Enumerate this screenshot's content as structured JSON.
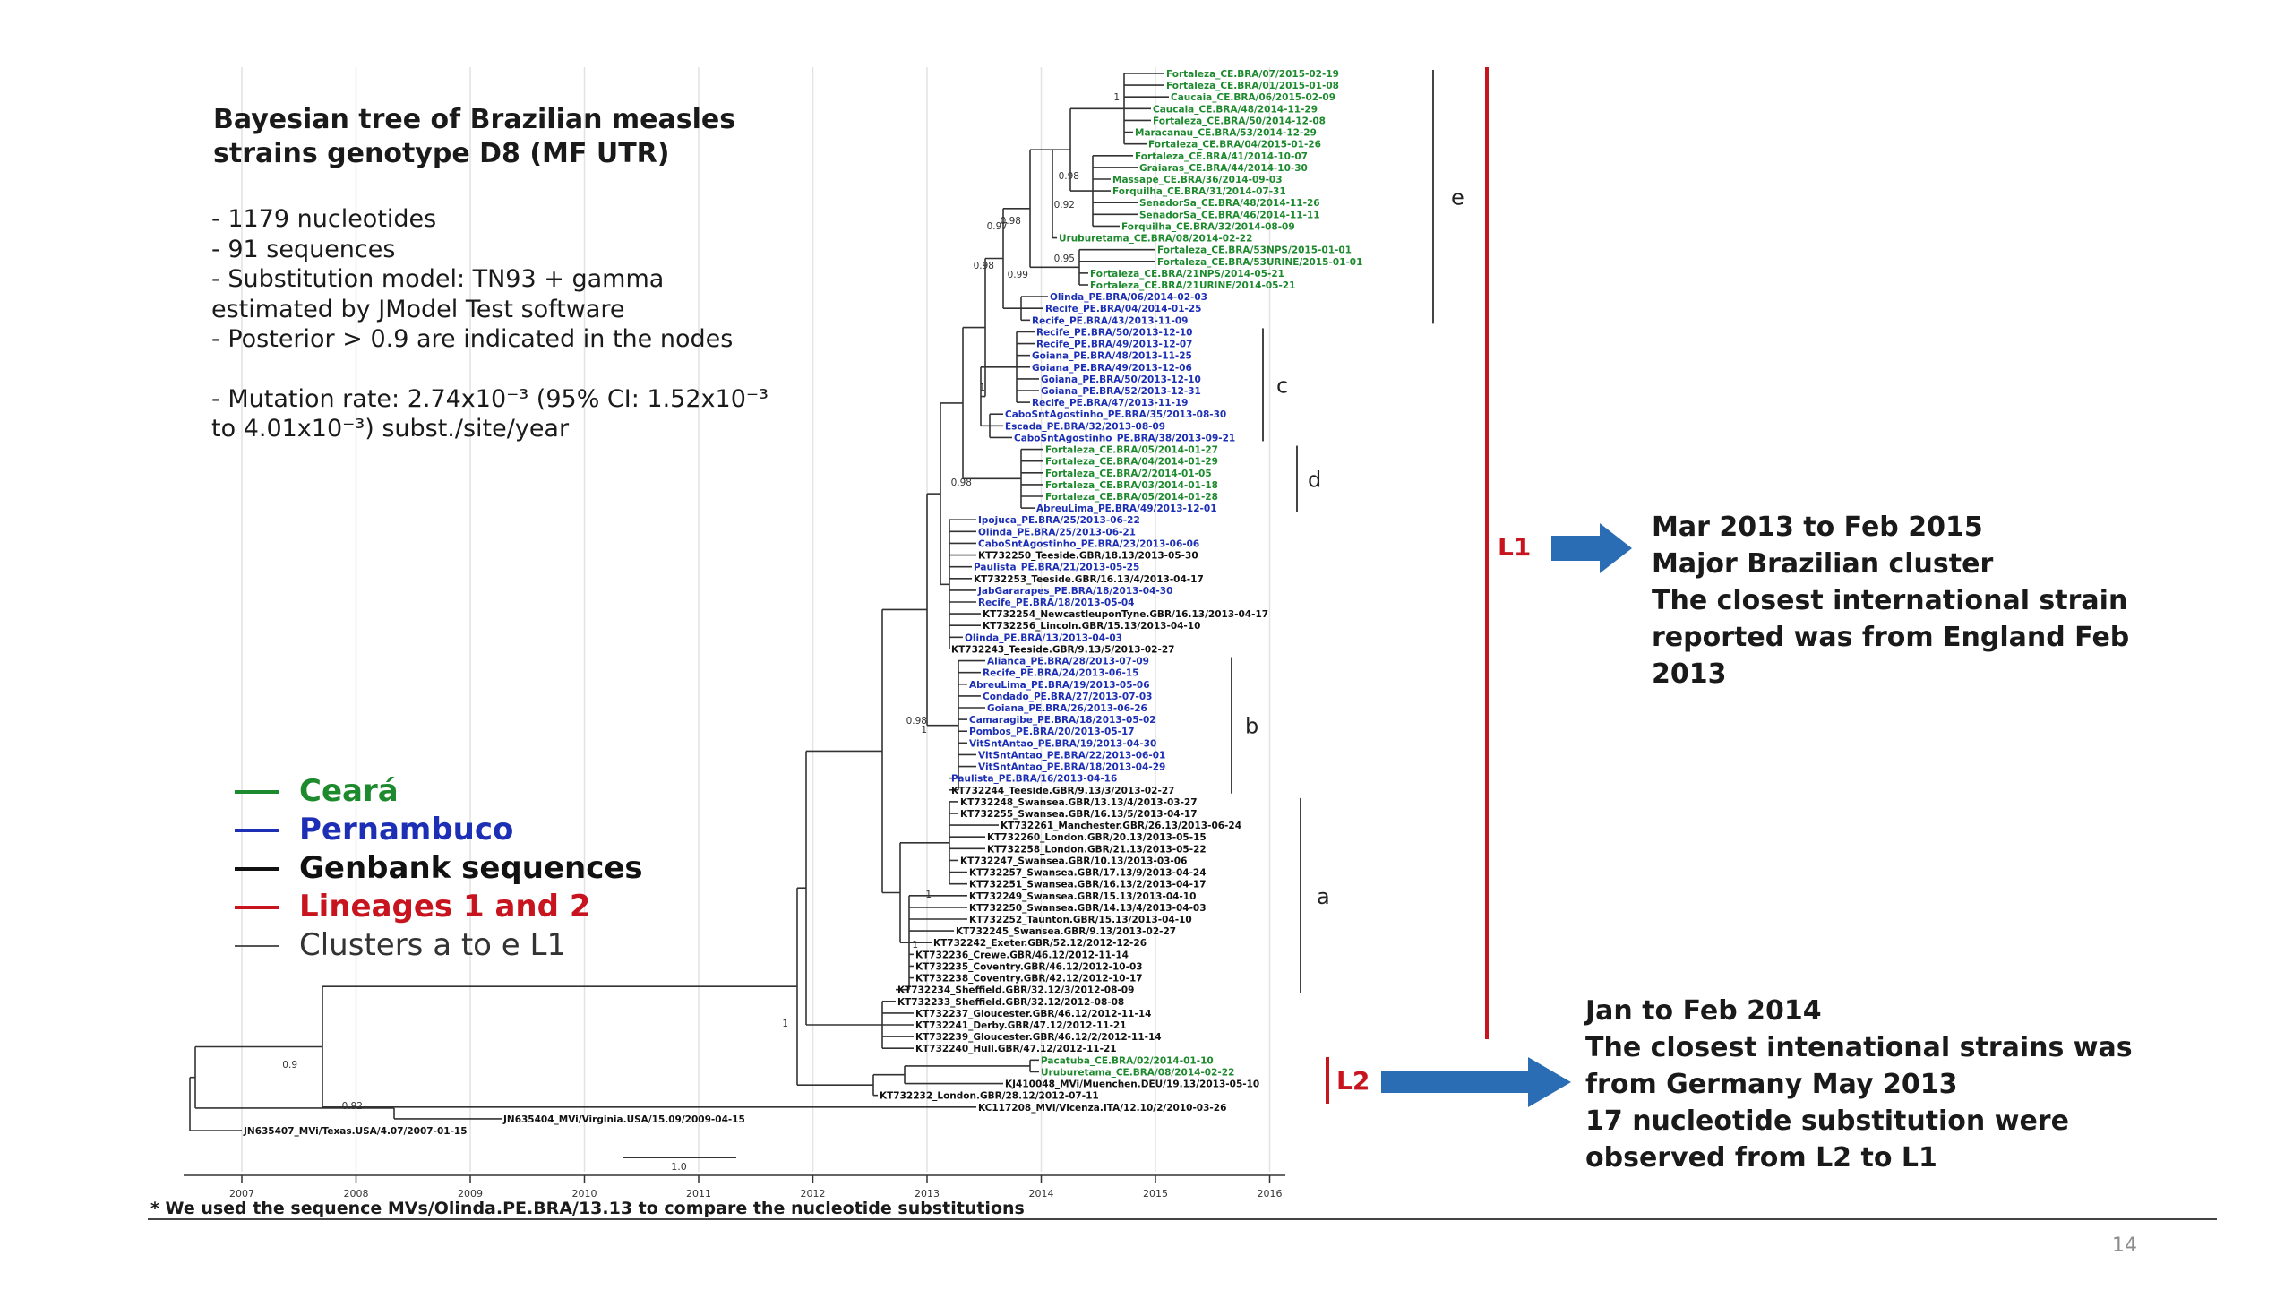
{
  "title_lines": [
    "Bayesian tree of Brazilian measles",
    "strains genotype D8 (MF UTR)"
  ],
  "notes": {
    "line1": "- 1179 nucleotides",
    "line2": "- 91 sequences",
    "line3": "- Substitution model: TN93 + gamma",
    "line4": "estimated by JModel Test software",
    "line5": "- Posterior > 0.9 are indicated in the nodes",
    "mutation_line1": "- Mutation rate: 2.74x10⁻³ (95% CI: 1.52x10⁻³",
    "mutation_line2": "to 4.01x10⁻³) subst./site/year"
  },
  "legend": [
    {
      "label": "Ceará",
      "color": "#1e8a2e"
    },
    {
      "label": "Pernambuco",
      "color": "#1c2fb5"
    },
    {
      "label": "Genbank sequences",
      "color": "#111111"
    },
    {
      "label": "Lineages 1 and 2",
      "color": "#c8141e"
    },
    {
      "label": "Clusters a to e L1",
      "color": "#555555"
    }
  ],
  "colors": {
    "ceara": "#1e8a2e",
    "pernambuco": "#1c2fb5",
    "genbank": "#111111",
    "lineage": "#c8141e",
    "arrow": "#2a6db4",
    "branch": "#333333",
    "cluster_bar": "#444444"
  },
  "clusters": [
    "e",
    "c",
    "d",
    "b",
    "a"
  ],
  "lineages": {
    "l1": "L1",
    "l2": "L2"
  },
  "l1_info": {
    "line1": "Mar 2013 to Feb 2015",
    "line2": "Major Brazilian cluster",
    "line3": "The closest international strain",
    "line4": "reported was from England Feb",
    "line5": "2013"
  },
  "l2_info": {
    "line1": "Jan to Feb 2014",
    "line2": "The closest intenational strains was",
    "line3": "from Germany May 2013",
    "line4": "17 nucleotide substitution were",
    "line5": "observed from L2 to L1"
  },
  "axis_years": [
    "2007",
    "2008",
    "2009",
    "2010",
    "2011",
    "2012",
    "2013",
    "2014",
    "2015",
    "2016"
  ],
  "scale_label": "1.0",
  "node_support": [
    "1",
    "0.98",
    "0.92",
    "0.95",
    "0.97",
    "0.98",
    "0.99",
    "0.98",
    "1",
    "0.98",
    "1",
    "0.98",
    "1",
    "1",
    "1",
    "0.9",
    "0.92"
  ],
  "tips": [
    {
      "label": "Fortaleza_CE.BRA/07/2015-02-19",
      "g": "ce"
    },
    {
      "label": "Fortaleza_CE.BRA/01/2015-01-08",
      "g": "ce"
    },
    {
      "label": "Caucaia_CE.BRA/06/2015-02-09",
      "g": "ce"
    },
    {
      "label": "Caucaia_CE.BRA/48/2014-11-29",
      "g": "ce"
    },
    {
      "label": "Fortaleza_CE.BRA/50/2014-12-08",
      "g": "ce"
    },
    {
      "label": "Maracanau_CE.BRA/53/2014-12-29",
      "g": "ce"
    },
    {
      "label": "Fortaleza_CE.BRA/04/2015-01-26",
      "g": "ce"
    },
    {
      "label": "Fortaleza_CE.BRA/41/2014-10-07",
      "g": "ce"
    },
    {
      "label": "Graiaras_CE.BRA/44/2014-10-30",
      "g": "ce"
    },
    {
      "label": "Massape_CE.BRA/36/2014-09-03",
      "g": "ce"
    },
    {
      "label": "Forquilha_CE.BRA/31/2014-07-31",
      "g": "ce"
    },
    {
      "label": "SenadorSa_CE.BRA/48/2014-11-26",
      "g": "ce"
    },
    {
      "label": "SenadorSa_CE.BRA/46/2014-11-11",
      "g": "ce"
    },
    {
      "label": "Forquilha_CE.BRA/32/2014-08-09",
      "g": "ce"
    },
    {
      "label": "Uruburetama_CE.BRA/08/2014-02-22",
      "g": "ce"
    },
    {
      "label": "Fortaleza_CE.BRA/53NPS/2015-01-01",
      "g": "ce"
    },
    {
      "label": "Fortaleza_CE.BRA/53URINE/2015-01-01",
      "g": "ce"
    },
    {
      "label": "Fortaleza_CE.BRA/21NPS/2014-05-21",
      "g": "ce"
    },
    {
      "label": "Fortaleza_CE.BRA/21URINE/2014-05-21",
      "g": "ce"
    },
    {
      "label": "Olinda_PE.BRA/06/2014-02-03",
      "g": "pe"
    },
    {
      "label": "Recife_PE.BRA/04/2014-01-25",
      "g": "pe"
    },
    {
      "label": "Recife_PE.BRA/43/2013-11-09",
      "g": "pe"
    },
    {
      "label": "Recife_PE.BRA/50/2013-12-10",
      "g": "pe"
    },
    {
      "label": "Recife_PE.BRA/49/2013-12-07",
      "g": "pe"
    },
    {
      "label": "Goiana_PE.BRA/48/2013-11-25",
      "g": "pe"
    },
    {
      "label": "Goiana_PE.BRA/49/2013-12-06",
      "g": "pe"
    },
    {
      "label": "Goiana_PE.BRA/50/2013-12-10",
      "g": "pe"
    },
    {
      "label": "Goiana_PE.BRA/52/2013-12-31",
      "g": "pe"
    },
    {
      "label": "Recife_PE.BRA/47/2013-11-19",
      "g": "pe"
    },
    {
      "label": "CaboSntAgostinho_PE.BRA/35/2013-08-30",
      "g": "pe"
    },
    {
      "label": "Escada_PE.BRA/32/2013-08-09",
      "g": "pe"
    },
    {
      "label": "CaboSntAgostinho_PE.BRA/38/2013-09-21",
      "g": "pe"
    },
    {
      "label": "Fortaleza_CE.BRA/05/2014-01-27",
      "g": "ce"
    },
    {
      "label": "Fortaleza_CE.BRA/04/2014-01-29",
      "g": "ce"
    },
    {
      "label": "Fortaleza_CE.BRA/2/2014-01-05",
      "g": "ce"
    },
    {
      "label": "Fortaleza_CE.BRA/03/2014-01-18",
      "g": "ce"
    },
    {
      "label": "Fortaleza_CE.BRA/05/2014-01-28",
      "g": "ce"
    },
    {
      "label": "AbreuLima_PE.BRA/49/2013-12-01",
      "g": "pe"
    },
    {
      "label": "Ipojuca_PE.BRA/25/2013-06-22",
      "g": "pe"
    },
    {
      "label": "Olinda_PE.BRA/25/2013-06-21",
      "g": "pe"
    },
    {
      "label": "CaboSntAgostinho_PE.BRA/23/2013-06-06",
      "g": "pe"
    },
    {
      "label": "KT732250_Teeside.GBR/18.13/2013-05-30",
      "g": "gb"
    },
    {
      "label": "Paulista_PE.BRA/21/2013-05-25",
      "g": "pe"
    },
    {
      "label": "KT732253_Teeside.GBR/16.13/4/2013-04-17",
      "g": "gb"
    },
    {
      "label": "JabGararapes_PE.BRA/18/2013-04-30",
      "g": "pe"
    },
    {
      "label": "Recife_PE.BRA/18/2013-05-04",
      "g": "pe"
    },
    {
      "label": "KT732254_NewcastleuponTyne.GBR/16.13/2013-04-17",
      "g": "gb"
    },
    {
      "label": "KT732256_Lincoln.GBR/15.13/2013-04-10",
      "g": "gb"
    },
    {
      "label": "Olinda_PE.BRA/13/2013-04-03",
      "g": "pe"
    },
    {
      "label": "KT732243_Teeside.GBR/9.13/5/2013-02-27",
      "g": "gb"
    },
    {
      "label": "Alianca_PE.BRA/28/2013-07-09",
      "g": "pe"
    },
    {
      "label": "Recife_PE.BRA/24/2013-06-15",
      "g": "pe"
    },
    {
      "label": "AbreuLima_PE.BRA/19/2013-05-06",
      "g": "pe"
    },
    {
      "label": "Condado_PE.BRA/27/2013-07-03",
      "g": "pe"
    },
    {
      "label": "Goiana_PE.BRA/26/2013-06-26",
      "g": "pe"
    },
    {
      "label": "Camaragibe_PE.BRA/18/2013-05-02",
      "g": "pe"
    },
    {
      "label": "Pombos_PE.BRA/20/2013-05-17",
      "g": "pe"
    },
    {
      "label": "VitSntAntao_PE.BRA/19/2013-04-30",
      "g": "pe"
    },
    {
      "label": "VitSntAntao_PE.BRA/22/2013-06-01",
      "g": "pe"
    },
    {
      "label": "VitSntAntao_PE.BRA/18/2013-04-29",
      "g": "pe"
    },
    {
      "label": "Paulista_PE.BRA/16/2013-04-16",
      "g": "pe"
    },
    {
      "label": "KT732244_Teeside.GBR/9.13/3/2013-02-27",
      "g": "gb"
    },
    {
      "label": "KT732248_Swansea.GBR/13.13/4/2013-03-27",
      "g": "gb"
    },
    {
      "label": "KT732255_Swansea.GBR/16.13/5/2013-04-17",
      "g": "gb"
    },
    {
      "label": "KT732261_Manchester.GBR/26.13/2013-06-24",
      "g": "gb"
    },
    {
      "label": "KT732260_London.GBR/20.13/2013-05-15",
      "g": "gb"
    },
    {
      "label": "KT732258_London.GBR/21.13/2013-05-22",
      "g": "gb"
    },
    {
      "label": "KT732247_Swansea.GBR/10.13/2013-03-06",
      "g": "gb"
    },
    {
      "label": "KT732257_Swansea.GBR/17.13/9/2013-04-24",
      "g": "gb"
    },
    {
      "label": "KT732251_Swansea.GBR/16.13/2/2013-04-17",
      "g": "gb"
    },
    {
      "label": "KT732249_Swansea.GBR/15.13/2013-04-10",
      "g": "gb"
    },
    {
      "label": "KT732250_Swansea.GBR/14.13/4/2013-04-03",
      "g": "gb"
    },
    {
      "label": "KT732252_Taunton.GBR/15.13/2013-04-10",
      "g": "gb"
    },
    {
      "label": "KT732245_Swansea.GBR/9.13/2013-02-27",
      "g": "gb"
    },
    {
      "label": "KT732242_Exeter.GBR/52.12/2012-12-26",
      "g": "gb"
    },
    {
      "label": "KT732236_Crewe.GBR/46.12/2012-11-14",
      "g": "gb"
    },
    {
      "label": "KT732235_Coventry.GBR/46.12/2012-10-03",
      "g": "gb"
    },
    {
      "label": "KT732238_Coventry.GBR/42.12/2012-10-17",
      "g": "gb"
    },
    {
      "label": "KT732234_Sheffield.GBR/32.12/3/2012-08-09",
      "g": "gb"
    },
    {
      "label": "KT732233_Sheffield.GBR/32.12/2012-08-08",
      "g": "gb"
    },
    {
      "label": "KT732237_Gloucester.GBR/46.12/2012-11-14",
      "g": "gb"
    },
    {
      "label": "KT732241_Derby.GBR/47.12/2012-11-21",
      "g": "gb"
    },
    {
      "label": "KT732239_Gloucester.GBR/46.12/2/2012-11-14",
      "g": "gb"
    },
    {
      "label": "KT732240_Hull.GBR/47.12/2012-11-21",
      "g": "gb"
    },
    {
      "label": "Pacatuba_CE.BRA/02/2014-01-10",
      "g": "ce"
    },
    {
      "label": "Uruburetama_CE.BRA/08/2014-02-22",
      "g": "ce"
    },
    {
      "label": "KJ410048_MVi/Muenchen.DEU/19.13/2013-05-10",
      "g": "gb"
    },
    {
      "label": "KT732232_London.GBR/28.12/2012-07-11",
      "g": "gb"
    },
    {
      "label": "KC117208_MVi/Vicenza.ITA/12.10/2/2010-03-26",
      "g": "gb"
    },
    {
      "label": "JN635404_MVi/Virginia.USA/15.09/2009-04-15",
      "g": "gb"
    },
    {
      "label": "JN635407_MVi/Texas.USA/4.07/2007-01-15",
      "g": "gb"
    }
  ],
  "footnote": "* We used the sequence MVs/Olinda.PE.BRA/13.13 to compare the nucleotide substitutions",
  "page_number": "14"
}
